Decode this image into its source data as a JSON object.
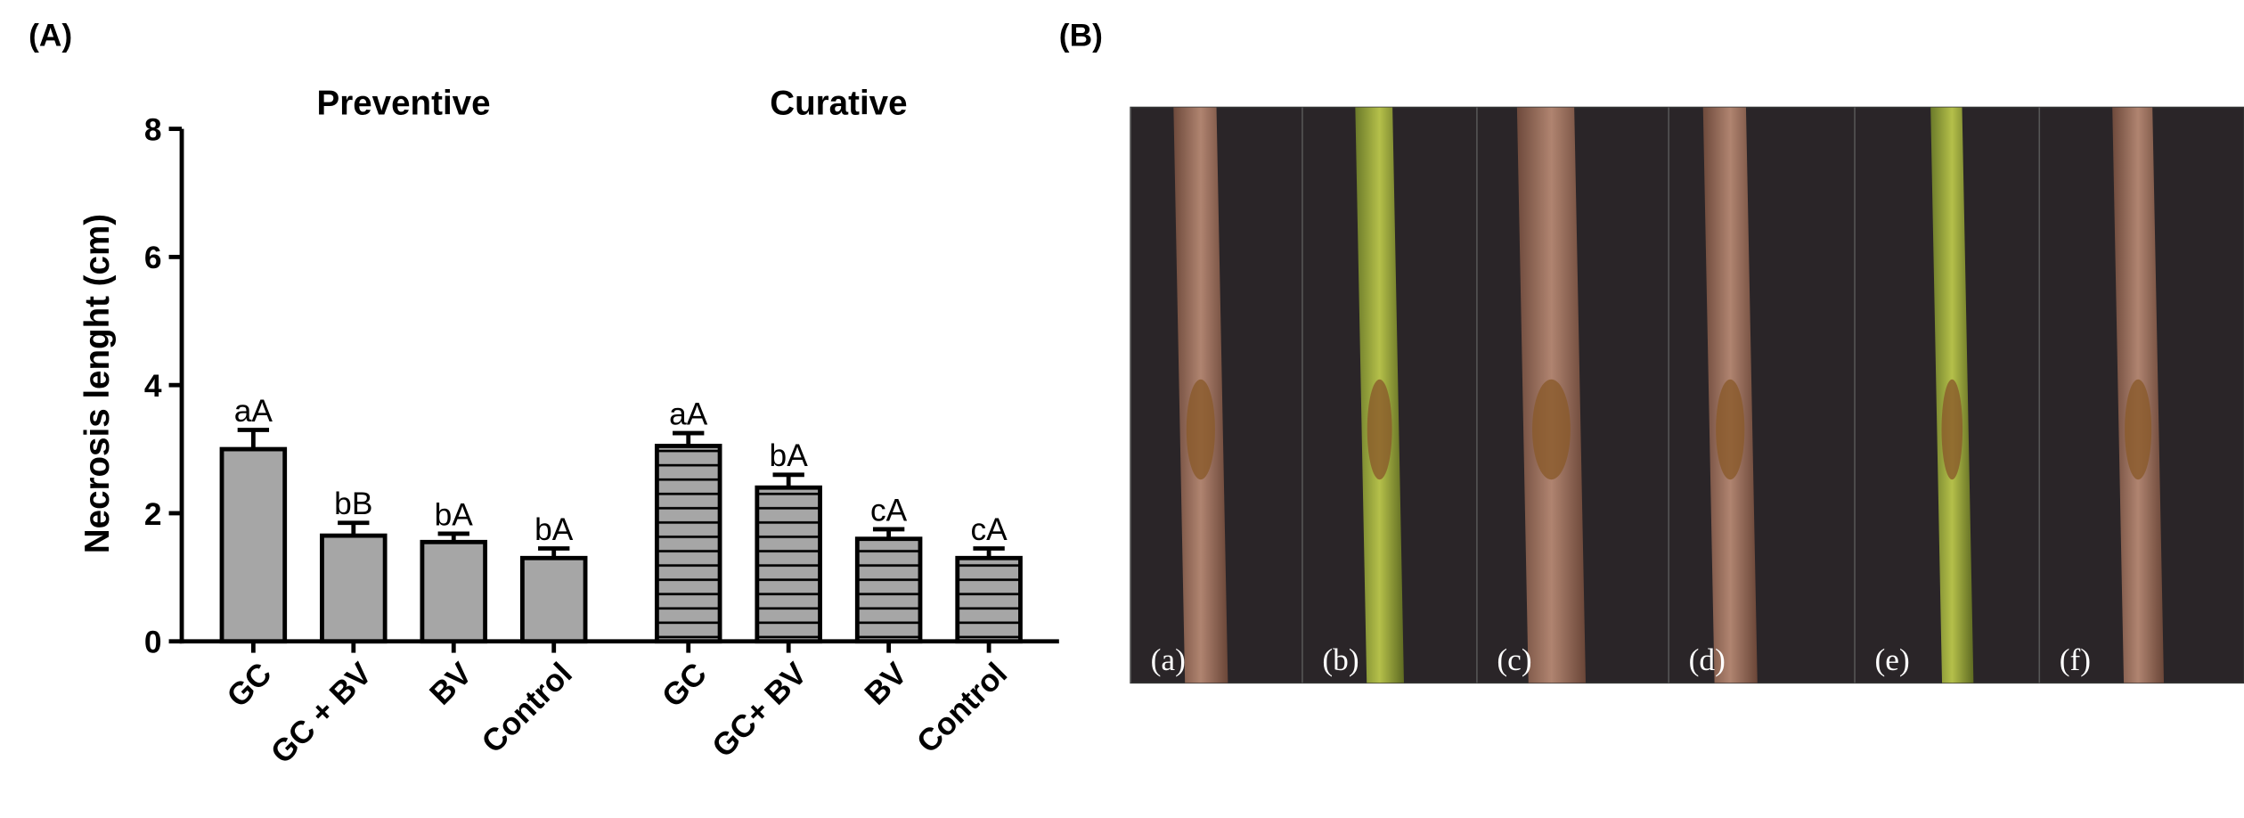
{
  "chart_data": {
    "type": "grouped-bar",
    "panel_label": "(A)",
    "y_label": "Necrosis lenght (cm)",
    "ylim": [
      0,
      8
    ],
    "yticks": [
      0,
      2,
      4,
      6,
      8
    ],
    "groups": [
      {
        "name": "Preventive",
        "color": "#a6a6a6",
        "hatch": false,
        "categories": [
          "GC",
          "GC + BV",
          "BV",
          "Control"
        ],
        "values": [
          3.0,
          1.65,
          1.55,
          1.3
        ],
        "errors": [
          0.3,
          0.2,
          0.13,
          0.15
        ],
        "letters": [
          "aA",
          "bB",
          "bA",
          "bA"
        ]
      },
      {
        "name": "Curative",
        "color": "#a6a6a6",
        "hatch": true,
        "categories": [
          "GC",
          "GC+ BV",
          "BV",
          "Control"
        ],
        "values": [
          3.05,
          2.4,
          1.6,
          1.3
        ],
        "errors": [
          0.2,
          0.2,
          0.15,
          0.15
        ],
        "letters": [
          "aA",
          "bA",
          "cA",
          "cA"
        ]
      }
    ]
  },
  "figure_b": {
    "label": "(B)",
    "panels": [
      "(a)",
      "(b)",
      "(c)",
      "(d)",
      "(e)",
      "(f)"
    ]
  }
}
